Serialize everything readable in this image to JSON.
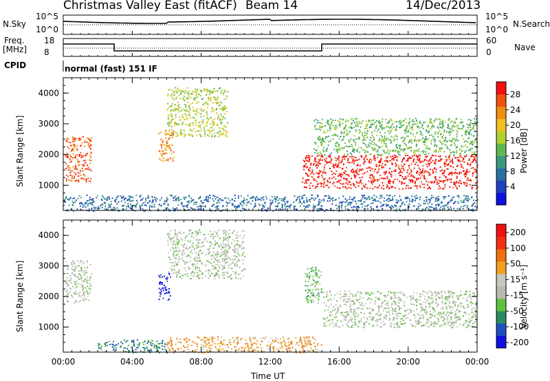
{
  "header": {
    "title": "Christmas Valley East (fitACF)",
    "beam": "Beam 14",
    "date": "14/Dec/2013"
  },
  "top_panels": {
    "nsky_label": "N.Sky",
    "nsky_ticks": [
      "10^5",
      "10^0"
    ],
    "nsearch_label": "N.Search",
    "nsearch_ticks": [
      "10^5",
      "10^0"
    ],
    "freq_label": "Freq.",
    "freq_unit": "[MHz]",
    "freq_ticks": [
      "18",
      "8"
    ],
    "nave_label": "Nave",
    "nave_ticks": [
      "60",
      "0"
    ],
    "cpid_label": "CPID",
    "cpid_value": "normal (fast) 151 IF"
  },
  "chart_data": [
    {
      "type": "heatmap",
      "name": "power",
      "ylabel": "Slant Range [km]",
      "xlabel": "Time UT",
      "xlim": [
        0,
        24
      ],
      "ylim": [
        180,
        4500
      ],
      "y_ticks": [
        1000,
        2000,
        3000,
        4000
      ],
      "colorbar": {
        "label": "Power [dB]",
        "ticks": [
          "4",
          "8",
          "12",
          "16",
          "20",
          "24",
          "28"
        ],
        "colors": [
          "#1010e0",
          "#2040c0",
          "#2a6fa0",
          "#3a9a80",
          "#60b850",
          "#b0d030",
          "#f0c020",
          "#f09010",
          "#f05010",
          "#f01010"
        ]
      },
      "regions": [
        {
          "t": [
            0.1,
            1.6
          ],
          "r": [
            1100,
            2600
          ],
          "level": 8
        },
        {
          "t": [
            6.0,
            9.5
          ],
          "r": [
            2600,
            4200
          ],
          "level": 5
        },
        {
          "t": [
            5.5,
            6.4
          ],
          "r": [
            1800,
            2800
          ],
          "level": 7
        },
        {
          "t": [
            13.8,
            24.0
          ],
          "r": [
            900,
            2000
          ],
          "level": 9
        },
        {
          "t": [
            14.5,
            24.0
          ],
          "r": [
            2000,
            3200
          ],
          "level": 4
        },
        {
          "t": [
            0.0,
            24.0
          ],
          "r": [
            180,
            700
          ],
          "level": 2
        }
      ]
    },
    {
      "type": "heatmap",
      "name": "velocity",
      "ylabel": "Slant Range [km]",
      "xlabel": "Time UT",
      "xlim": [
        0,
        24
      ],
      "ylim": [
        180,
        4500
      ],
      "y_ticks": [
        1000,
        2000,
        3000,
        4000
      ],
      "x_ticks": [
        "00:00",
        "04:00",
        "08:00",
        "12:00",
        "16:00",
        "20:00",
        "00:00"
      ],
      "colorbar": {
        "label": "Velocity [m s⁻¹]",
        "ticks": [
          "200",
          "100",
          "50",
          "15",
          "-15",
          "-50",
          "-100",
          "-200"
        ],
        "colors": [
          "#1010e0",
          "#2050c0",
          "#2a8a60",
          "#60c040",
          "#b8b8b0",
          "#c8c8c0",
          "#f0a020",
          "#f07010",
          "#f03010",
          "#f01010"
        ]
      },
      "regions": [
        {
          "t": [
            0.1,
            1.6
          ],
          "r": [
            1800,
            3200
          ],
          "level": 4
        },
        {
          "t": [
            5.5,
            6.2
          ],
          "r": [
            1900,
            2800
          ],
          "level": 0
        },
        {
          "t": [
            6.0,
            10.5
          ],
          "r": [
            2600,
            4200
          ],
          "level": 4
        },
        {
          "t": [
            14.0,
            15.0
          ],
          "r": [
            1800,
            3000
          ],
          "level": 3
        },
        {
          "t": [
            15.0,
            24.0
          ],
          "r": [
            1000,
            2200
          ],
          "level": 4
        },
        {
          "t": [
            2.0,
            6.0
          ],
          "r": [
            180,
            600
          ],
          "level": 2
        },
        {
          "t": [
            6.0,
            15.0
          ],
          "r": [
            180,
            700
          ],
          "level": 6
        }
      ]
    }
  ]
}
